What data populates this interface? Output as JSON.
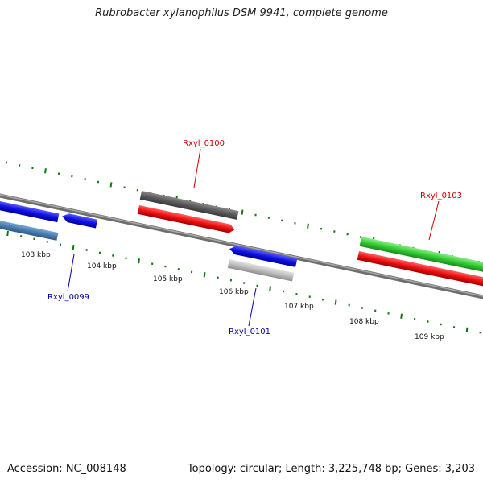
{
  "title": "Rubrobacter xylanophilus DSM 9941, complete genome",
  "footer": {
    "accession": "Accession: NC_008148",
    "summary": "Topology: circular; Length: 3,225,748 bp; Genes: 3,203"
  },
  "ticks": [
    {
      "label": "103 kbp"
    },
    {
      "label": "104 kbp"
    },
    {
      "label": "105 kbp"
    },
    {
      "label": "106 kbp"
    },
    {
      "label": "107 kbp"
    },
    {
      "label": "108 kbp"
    },
    {
      "label": "109 kbp"
    }
  ],
  "genes": [
    {
      "label": "Rxyl_0099",
      "color": "#0000aa"
    },
    {
      "label": "Rxyl_0100",
      "color": "#cc0000"
    },
    {
      "label": "Rxyl_0101",
      "color": "#0000aa"
    },
    {
      "label": "Rxyl_0103",
      "color": "#cc0000"
    }
  ],
  "colors": {
    "backbone": "#808080",
    "tick": "#117711",
    "blue_feature": "#1010e0",
    "steelblue_feature": "#4a7db0",
    "red_feature": "#ee1111",
    "gray_feature": "#5a5a5a",
    "lightgray_feature": "#b8b8b8",
    "green_feature": "#33cc33"
  }
}
